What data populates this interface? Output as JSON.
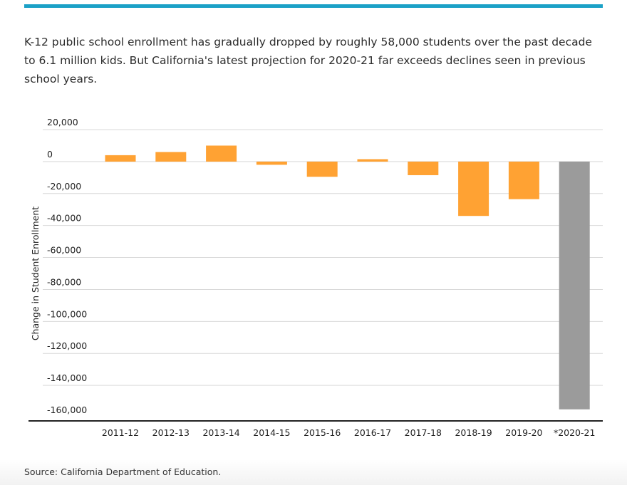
{
  "article": {
    "description": "K-12 public school enrollment has gradually dropped by roughly 58,000 students over the past decade to 6.1 million kids. But California's latest projection for 2020-21 far exceeds declines seen in previous school years.",
    "source": "Source: California Department of Education."
  },
  "colors": {
    "accent_rule": "#1ba1c7",
    "bar_historical": "#ffa233",
    "bar_projection": "#9b9b9b",
    "grid": "#d9d9d9",
    "axis": "#222222",
    "tick_text": "#222222"
  },
  "chart_data": {
    "type": "bar",
    "title": "",
    "xlabel": "",
    "ylabel": "Change in Student Enrollment",
    "ylim": [
      -160000,
      20000
    ],
    "yticks": [
      20000,
      0,
      -20000,
      -40000,
      -60000,
      -80000,
      -100000,
      -120000,
      -140000,
      -160000
    ],
    "ytick_labels": [
      "20,000",
      "0",
      "-20,000",
      "-40,000",
      "-60,000",
      "-80,000",
      "-100,000",
      "-120,000",
      "-140,000",
      "-160,000"
    ],
    "grid": true,
    "legend": "none",
    "categories": [
      "2011-12",
      "2012-13",
      "2013-14",
      "2014-15",
      "2015-16",
      "2016-17",
      "2017-18",
      "2018-19",
      "2019-20",
      "*2020-21"
    ],
    "values": [
      4000,
      6000,
      10000,
      -2000,
      -9500,
      1500,
      -8500,
      -34000,
      -23500,
      -155000
    ],
    "highlight": [
      false,
      false,
      false,
      false,
      false,
      false,
      false,
      false,
      false,
      true
    ]
  }
}
